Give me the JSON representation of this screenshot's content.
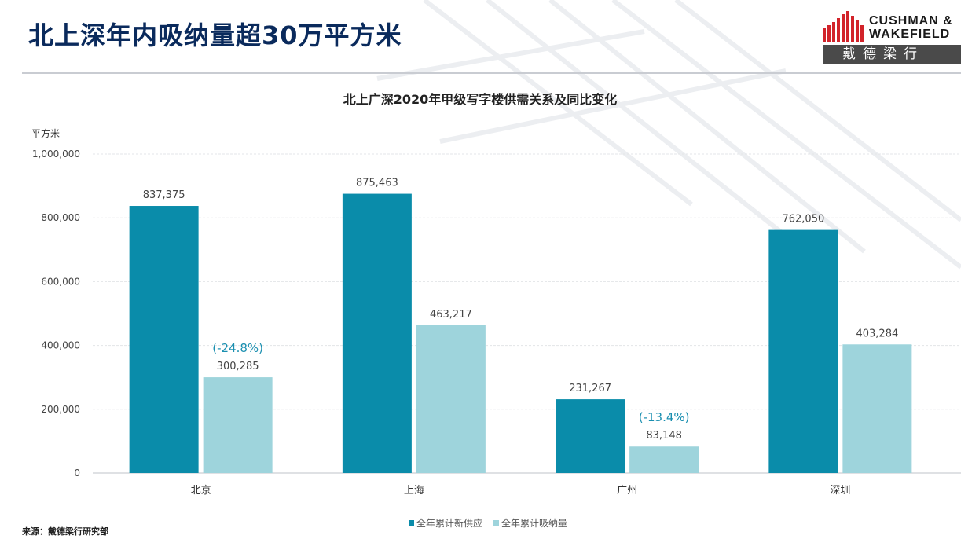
{
  "page": {
    "title": "北上深年内吸纳量超30万平方米",
    "source": "来源：戴德梁行研究部"
  },
  "logo": {
    "line1": "CUSHMAN &",
    "line2": "WAKEFIELD",
    "cn": "戴德梁行",
    "color": "#d2232a"
  },
  "colors": {
    "supply": "#0a8caa",
    "absorption": "#9ed4dc",
    "annotation": "#1a8fb0",
    "title": "#0a2a5c"
  },
  "chart_data": {
    "type": "bar",
    "title": "北上广深2020年甲级写字楼供需关系及同比变化",
    "ylabel": "平方米",
    "xlabel": "",
    "ylim": [
      0,
      1000000
    ],
    "yticks": [
      0,
      200000,
      400000,
      600000,
      800000,
      1000000
    ],
    "ytick_labels": [
      "0",
      "200,000",
      "400,000",
      "600,000",
      "800,000",
      "1,000,000"
    ],
    "categories": [
      "北京",
      "上海",
      "广州",
      "深圳"
    ],
    "series": [
      {
        "name": "全年累计新供应",
        "values": [
          837375,
          875463,
          231267,
          762050
        ],
        "labels": [
          "837,375",
          "875,463",
          "231,267",
          "762,050"
        ]
      },
      {
        "name": "全年累计吸纳量",
        "values": [
          300285,
          463217,
          83148,
          403284
        ],
        "labels": [
          "300,285",
          "463,217",
          "83,148",
          "403,284"
        ]
      }
    ],
    "annotations": [
      {
        "category": "北京",
        "series": 1,
        "text": "(-24.8%)"
      },
      {
        "category": "广州",
        "series": 1,
        "text": "(-13.4%)"
      }
    ],
    "grid": true,
    "legend_position": "bottom"
  }
}
